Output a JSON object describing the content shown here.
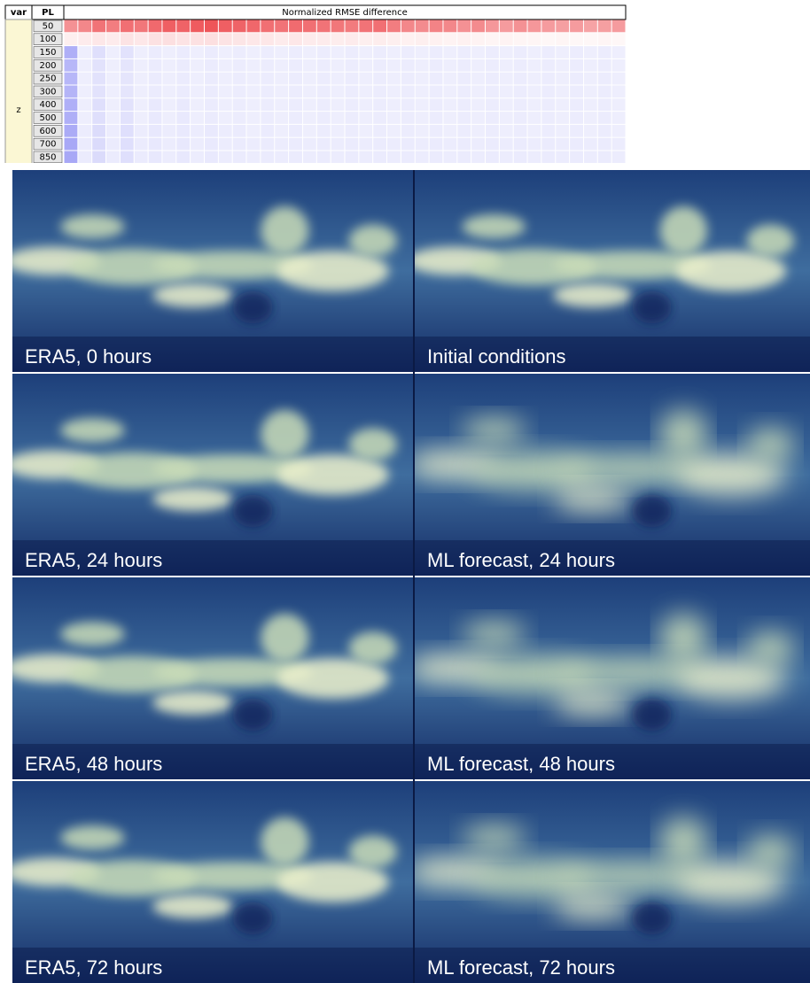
{
  "heatmap": {
    "header": {
      "var": "var",
      "pl": "PL",
      "title": "Normalized RMSE difference"
    },
    "variable": "z",
    "levels": [
      50,
      100,
      150,
      200,
      250,
      300,
      400,
      500,
      600,
      700,
      850
    ],
    "values": [
      [
        0.55,
        0.6,
        0.7,
        0.65,
        0.72,
        0.68,
        0.75,
        0.8,
        0.78,
        0.82,
        0.85,
        0.8,
        0.78,
        0.76,
        0.72,
        0.7,
        0.74,
        0.72,
        0.7,
        0.68,
        0.66,
        0.7,
        0.72,
        0.65,
        0.6,
        0.58,
        0.62,
        0.6,
        0.55,
        0.58,
        0.52,
        0.5,
        0.55,
        0.52,
        0.5,
        0.48,
        0.5,
        0.46,
        0.48,
        0.5
      ],
      [
        0.08,
        0.1,
        0.12,
        0.1,
        0.14,
        0.12,
        0.15,
        0.16,
        0.14,
        0.15,
        0.16,
        0.14,
        0.13,
        0.12,
        0.12,
        0.1,
        0.12,
        0.1,
        0.1,
        0.09,
        0.1,
        0.08,
        0.09,
        0.08,
        0.07,
        0.08,
        0.07,
        0.06,
        0.07,
        0.06,
        0.05,
        0.06,
        0.05,
        0.05,
        0.04,
        0.05,
        0.04,
        0.04,
        0.05,
        0.04
      ],
      [
        -0.55,
        -0.12,
        -0.22,
        -0.12,
        -0.2,
        -0.12,
        -0.14,
        -0.12,
        -0.14,
        -0.12,
        -0.14,
        -0.12,
        -0.13,
        -0.12,
        -0.13,
        -0.12,
        -0.13,
        -0.12,
        -0.13,
        -0.12,
        -0.13,
        -0.12,
        -0.13,
        -0.12,
        -0.13,
        -0.12,
        -0.13,
        -0.12,
        -0.13,
        -0.12,
        -0.13,
        -0.12,
        -0.13,
        -0.12,
        -0.13,
        -0.12,
        -0.13,
        -0.12,
        -0.13,
        -0.12
      ],
      [
        -0.5,
        -0.12,
        -0.2,
        -0.12,
        -0.18,
        -0.12,
        -0.14,
        -0.12,
        -0.14,
        -0.12,
        -0.14,
        -0.12,
        -0.13,
        -0.12,
        -0.13,
        -0.12,
        -0.13,
        -0.12,
        -0.13,
        -0.12,
        -0.13,
        -0.12,
        -0.13,
        -0.12,
        -0.13,
        -0.12,
        -0.13,
        -0.12,
        -0.13,
        -0.12,
        -0.13,
        -0.12,
        -0.13,
        -0.12,
        -0.13,
        -0.12,
        -0.13,
        -0.12,
        -0.13,
        -0.12
      ],
      [
        -0.5,
        -0.12,
        -0.2,
        -0.12,
        -0.18,
        -0.12,
        -0.14,
        -0.12,
        -0.14,
        -0.12,
        -0.14,
        -0.12,
        -0.13,
        -0.12,
        -0.13,
        -0.12,
        -0.13,
        -0.12,
        -0.13,
        -0.12,
        -0.13,
        -0.12,
        -0.13,
        -0.12,
        -0.13,
        -0.12,
        -0.13,
        -0.12,
        -0.13,
        -0.12,
        -0.13,
        -0.12,
        -0.13,
        -0.12,
        -0.13,
        -0.12,
        -0.13,
        -0.12,
        -0.13,
        -0.12
      ],
      [
        -0.52,
        -0.12,
        -0.2,
        -0.12,
        -0.18,
        -0.12,
        -0.14,
        -0.12,
        -0.14,
        -0.12,
        -0.14,
        -0.12,
        -0.13,
        -0.12,
        -0.13,
        -0.12,
        -0.13,
        -0.12,
        -0.13,
        -0.12,
        -0.13,
        -0.12,
        -0.13,
        -0.12,
        -0.13,
        -0.12,
        -0.13,
        -0.12,
        -0.13,
        -0.12,
        -0.13,
        -0.12,
        -0.13,
        -0.12,
        -0.13,
        -0.12,
        -0.13,
        -0.12,
        -0.13,
        -0.12
      ],
      [
        -0.55,
        -0.12,
        -0.22,
        -0.12,
        -0.2,
        -0.12,
        -0.15,
        -0.12,
        -0.15,
        -0.12,
        -0.14,
        -0.12,
        -0.13,
        -0.12,
        -0.13,
        -0.12,
        -0.13,
        -0.12,
        -0.13,
        -0.12,
        -0.13,
        -0.12,
        -0.13,
        -0.12,
        -0.13,
        -0.12,
        -0.13,
        -0.12,
        -0.13,
        -0.12,
        -0.13,
        -0.12,
        -0.13,
        -0.12,
        -0.13,
        -0.12,
        -0.13,
        -0.12,
        -0.13,
        -0.12
      ],
      [
        -0.55,
        -0.12,
        -0.22,
        -0.12,
        -0.2,
        -0.12,
        -0.15,
        -0.12,
        -0.15,
        -0.12,
        -0.14,
        -0.12,
        -0.13,
        -0.12,
        -0.13,
        -0.12,
        -0.13,
        -0.12,
        -0.13,
        -0.12,
        -0.13,
        -0.12,
        -0.13,
        -0.12,
        -0.13,
        -0.12,
        -0.13,
        -0.12,
        -0.13,
        -0.12,
        -0.13,
        -0.12,
        -0.13,
        -0.12,
        -0.13,
        -0.12,
        -0.13,
        -0.12,
        -0.13,
        -0.12
      ],
      [
        -0.58,
        -0.13,
        -0.24,
        -0.13,
        -0.22,
        -0.13,
        -0.16,
        -0.13,
        -0.15,
        -0.13,
        -0.15,
        -0.13,
        -0.14,
        -0.12,
        -0.14,
        -0.12,
        -0.14,
        -0.12,
        -0.13,
        -0.12,
        -0.13,
        -0.12,
        -0.13,
        -0.12,
        -0.13,
        -0.12,
        -0.13,
        -0.12,
        -0.13,
        -0.12,
        -0.13,
        -0.12,
        -0.13,
        -0.12,
        -0.13,
        -0.12,
        -0.13,
        -0.12,
        -0.13,
        -0.12
      ],
      [
        -0.6,
        -0.14,
        -0.25,
        -0.14,
        -0.22,
        -0.14,
        -0.16,
        -0.13,
        -0.16,
        -0.13,
        -0.15,
        -0.13,
        -0.14,
        -0.13,
        -0.14,
        -0.13,
        -0.14,
        -0.13,
        -0.14,
        -0.13,
        -0.14,
        -0.13,
        -0.14,
        -0.13,
        -0.14,
        -0.13,
        -0.14,
        -0.13,
        -0.14,
        -0.13,
        -0.14,
        -0.13,
        -0.14,
        -0.13,
        -0.14,
        -0.13,
        -0.14,
        -0.13,
        -0.14,
        -0.13
      ],
      [
        -0.6,
        -0.14,
        -0.25,
        -0.14,
        -0.22,
        -0.14,
        -0.16,
        -0.13,
        -0.16,
        -0.13,
        -0.15,
        -0.13,
        -0.14,
        -0.13,
        -0.14,
        -0.13,
        -0.14,
        -0.13,
        -0.14,
        -0.13,
        -0.14,
        -0.13,
        -0.14,
        -0.13,
        -0.14,
        -0.13,
        -0.14,
        -0.13,
        -0.14,
        -0.13,
        -0.14,
        -0.13,
        -0.14,
        -0.13,
        -0.14,
        -0.13,
        -0.14,
        -0.13,
        -0.14,
        -0.13
      ]
    ]
  },
  "panels": [
    {
      "label": "ERA5, 0 hours"
    },
    {
      "label": "Initial conditions"
    },
    {
      "label": "ERA5, 24 hours"
    },
    {
      "label": "ML forecast, 24 hours"
    },
    {
      "label": "ERA5, 48 hours"
    },
    {
      "label": "ML forecast, 48 hours"
    },
    {
      "label": "ERA5, 72 hours"
    },
    {
      "label": "ML forecast, 72 hours"
    }
  ]
}
